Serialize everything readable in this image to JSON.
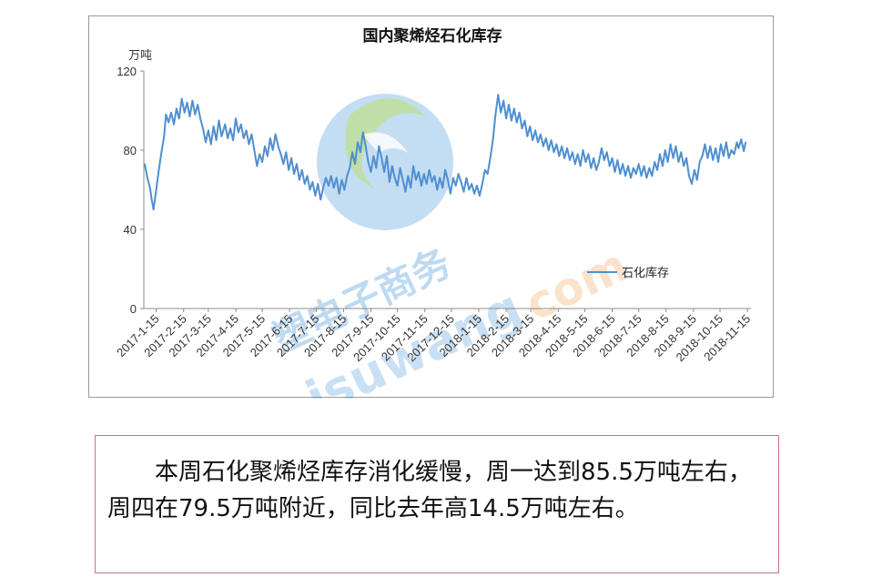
{
  "chart_data": {
    "type": "line",
    "title": "国内聚烯烃石化库存",
    "y_unit_label": "万吨",
    "ylim": [
      0,
      120
    ],
    "y_ticks": [
      "0",
      "40",
      "80",
      "120"
    ],
    "x_ticks": [
      "2017-1-15",
      "2017-2-15",
      "2017-3-15",
      "2017-4-15",
      "2017-5-15",
      "2017-6-15",
      "2017-7-15",
      "2017-8-15",
      "2017-9-15",
      "2017-10-15",
      "2017-11-15",
      "2017-12-15",
      "2018-1-15",
      "2018-2-15",
      "2018-3-15",
      "2018-4-15",
      "2018-5-15",
      "2018-6-15",
      "2018-7-15",
      "2018-8-15",
      "2018-9-15",
      "2018-10-15",
      "2018-11-15"
    ],
    "grid": false,
    "legend_position": "right",
    "series": [
      {
        "name": "石化库存",
        "color": "#4f8fd0",
        "points": [
          [
            "2017-01-02",
            73
          ],
          [
            "2017-01-05",
            66
          ],
          [
            "2017-01-08",
            61
          ],
          [
            "2017-01-10",
            55
          ],
          [
            "2017-01-12",
            50
          ],
          [
            "2017-01-15",
            60
          ],
          [
            "2017-01-18",
            70
          ],
          [
            "2017-01-21",
            79
          ],
          [
            "2017-01-24",
            87
          ],
          [
            "2017-01-26",
            98
          ],
          [
            "2017-01-29",
            94
          ],
          [
            "2017-02-01",
            99
          ],
          [
            "2017-02-04",
            93
          ],
          [
            "2017-02-07",
            101
          ],
          [
            "2017-02-10",
            96
          ],
          [
            "2017-02-13",
            106
          ],
          [
            "2017-02-16",
            99
          ],
          [
            "2017-02-19",
            104
          ],
          [
            "2017-02-22",
            97
          ],
          [
            "2017-02-25",
            105
          ],
          [
            "2017-02-28",
            98
          ],
          [
            "2017-03-03",
            103
          ],
          [
            "2017-03-06",
            96
          ],
          [
            "2017-03-09",
            91
          ],
          [
            "2017-03-12",
            84
          ],
          [
            "2017-03-15",
            90
          ],
          [
            "2017-03-18",
            83
          ],
          [
            "2017-03-21",
            92
          ],
          [
            "2017-03-24",
            85
          ],
          [
            "2017-03-27",
            95
          ],
          [
            "2017-03-30",
            87
          ],
          [
            "2017-04-03",
            93
          ],
          [
            "2017-04-06",
            86
          ],
          [
            "2017-04-09",
            91
          ],
          [
            "2017-04-12",
            85
          ],
          [
            "2017-04-15",
            96
          ],
          [
            "2017-04-18",
            89
          ],
          [
            "2017-04-21",
            93
          ],
          [
            "2017-04-24",
            86
          ],
          [
            "2017-04-27",
            90
          ],
          [
            "2017-04-30",
            83
          ],
          [
            "2017-05-03",
            88
          ],
          [
            "2017-05-06",
            80
          ],
          [
            "2017-05-09",
            72
          ],
          [
            "2017-05-12",
            78
          ],
          [
            "2017-05-15",
            74
          ],
          [
            "2017-05-18",
            82
          ],
          [
            "2017-05-21",
            77
          ],
          [
            "2017-05-24",
            86
          ],
          [
            "2017-05-27",
            80
          ],
          [
            "2017-05-30",
            88
          ],
          [
            "2017-06-02",
            82
          ],
          [
            "2017-06-05",
            78
          ],
          [
            "2017-06-08",
            73
          ],
          [
            "2017-06-11",
            79
          ],
          [
            "2017-06-14",
            70
          ],
          [
            "2017-06-17",
            76
          ],
          [
            "2017-06-20",
            68
          ],
          [
            "2017-06-23",
            73
          ],
          [
            "2017-06-26",
            65
          ],
          [
            "2017-06-29",
            70
          ],
          [
            "2017-07-02",
            63
          ],
          [
            "2017-07-05",
            67
          ],
          [
            "2017-07-08",
            60
          ],
          [
            "2017-07-11",
            64
          ],
          [
            "2017-07-14",
            57
          ],
          [
            "2017-07-17",
            63
          ],
          [
            "2017-07-20",
            55
          ],
          [
            "2017-07-23",
            61
          ],
          [
            "2017-07-26",
            66
          ],
          [
            "2017-07-29",
            62
          ],
          [
            "2017-08-01",
            67
          ],
          [
            "2017-08-04",
            61
          ],
          [
            "2017-08-07",
            66
          ],
          [
            "2017-08-10",
            58
          ],
          [
            "2017-08-13",
            65
          ],
          [
            "2017-08-16",
            60
          ],
          [
            "2017-08-19",
            67
          ],
          [
            "2017-08-22",
            71
          ],
          [
            "2017-08-25",
            79
          ],
          [
            "2017-08-28",
            73
          ],
          [
            "2017-08-31",
            84
          ],
          [
            "2017-09-03",
            79
          ],
          [
            "2017-09-06",
            89
          ],
          [
            "2017-09-09",
            82
          ],
          [
            "2017-09-12",
            74
          ],
          [
            "2017-09-15",
            69
          ],
          [
            "2017-09-18",
            77
          ],
          [
            "2017-09-21",
            71
          ],
          [
            "2017-09-24",
            82
          ],
          [
            "2017-09-27",
            76
          ],
          [
            "2017-09-30",
            69
          ],
          [
            "2017-10-03",
            77
          ],
          [
            "2017-10-06",
            64
          ],
          [
            "2017-10-09",
            72
          ],
          [
            "2017-10-12",
            66
          ],
          [
            "2017-10-15",
            62
          ],
          [
            "2017-10-18",
            71
          ],
          [
            "2017-10-21",
            65
          ],
          [
            "2017-10-24",
            59
          ],
          [
            "2017-10-27",
            67
          ],
          [
            "2017-10-30",
            61
          ],
          [
            "2017-11-02",
            72
          ],
          [
            "2017-11-05",
            65
          ],
          [
            "2017-11-08",
            69
          ],
          [
            "2017-11-11",
            62
          ],
          [
            "2017-11-14",
            68
          ],
          [
            "2017-11-17",
            63
          ],
          [
            "2017-11-20",
            70
          ],
          [
            "2017-11-23",
            64
          ],
          [
            "2017-11-26",
            67
          ],
          [
            "2017-11-29",
            60
          ],
          [
            "2017-12-02",
            66
          ],
          [
            "2017-12-05",
            61
          ],
          [
            "2017-12-08",
            70
          ],
          [
            "2017-12-11",
            65
          ],
          [
            "2017-12-14",
            58
          ],
          [
            "2017-12-17",
            66
          ],
          [
            "2017-12-20",
            62
          ],
          [
            "2017-12-23",
            68
          ],
          [
            "2017-12-26",
            64
          ],
          [
            "2017-12-29",
            59
          ],
          [
            "2018-01-01",
            66
          ],
          [
            "2018-01-04",
            60
          ],
          [
            "2018-01-07",
            63
          ],
          [
            "2018-01-10",
            58
          ],
          [
            "2018-01-13",
            62
          ],
          [
            "2018-01-16",
            57
          ],
          [
            "2018-01-19",
            63
          ],
          [
            "2018-01-22",
            70
          ],
          [
            "2018-01-25",
            68
          ],
          [
            "2018-01-28",
            76
          ],
          [
            "2018-01-31",
            85
          ],
          [
            "2018-02-03",
            98
          ],
          [
            "2018-02-06",
            108
          ],
          [
            "2018-02-09",
            99
          ],
          [
            "2018-02-12",
            105
          ],
          [
            "2018-02-15",
            96
          ],
          [
            "2018-02-18",
            103
          ],
          [
            "2018-02-21",
            95
          ],
          [
            "2018-02-24",
            101
          ],
          [
            "2018-02-27",
            94
          ],
          [
            "2018-03-02",
            99
          ],
          [
            "2018-03-05",
            91
          ],
          [
            "2018-03-08",
            95
          ],
          [
            "2018-03-11",
            87
          ],
          [
            "2018-03-14",
            92
          ],
          [
            "2018-03-17",
            85
          ],
          [
            "2018-03-20",
            90
          ],
          [
            "2018-03-23",
            84
          ],
          [
            "2018-03-26",
            88
          ],
          [
            "2018-03-29",
            82
          ],
          [
            "2018-04-01",
            86
          ],
          [
            "2018-04-04",
            80
          ],
          [
            "2018-04-07",
            85
          ],
          [
            "2018-04-10",
            79
          ],
          [
            "2018-04-13",
            83
          ],
          [
            "2018-04-16",
            77
          ],
          [
            "2018-04-19",
            82
          ],
          [
            "2018-04-22",
            76
          ],
          [
            "2018-04-25",
            81
          ],
          [
            "2018-04-28",
            75
          ],
          [
            "2018-05-01",
            79
          ],
          [
            "2018-05-04",
            73
          ],
          [
            "2018-05-07",
            78
          ],
          [
            "2018-05-10",
            72
          ],
          [
            "2018-05-13",
            80
          ],
          [
            "2018-05-16",
            74
          ],
          [
            "2018-05-19",
            78
          ],
          [
            "2018-05-22",
            71
          ],
          [
            "2018-05-25",
            76
          ],
          [
            "2018-05-28",
            70
          ],
          [
            "2018-05-31",
            74
          ],
          [
            "2018-06-03",
            81
          ],
          [
            "2018-06-06",
            75
          ],
          [
            "2018-06-09",
            79
          ],
          [
            "2018-06-12",
            72
          ],
          [
            "2018-06-15",
            76
          ],
          [
            "2018-06-18",
            69
          ],
          [
            "2018-06-21",
            75
          ],
          [
            "2018-06-24",
            68
          ],
          [
            "2018-06-27",
            73
          ],
          [
            "2018-06-30",
            67
          ],
          [
            "2018-07-03",
            72
          ],
          [
            "2018-07-06",
            66
          ],
          [
            "2018-07-09",
            71
          ],
          [
            "2018-07-12",
            68
          ],
          [
            "2018-07-15",
            73
          ],
          [
            "2018-07-18",
            67
          ],
          [
            "2018-07-21",
            72
          ],
          [
            "2018-07-24",
            66
          ],
          [
            "2018-07-27",
            71
          ],
          [
            "2018-07-30",
            67
          ],
          [
            "2018-08-02",
            74
          ],
          [
            "2018-08-05",
            70
          ],
          [
            "2018-08-08",
            78
          ],
          [
            "2018-08-11",
            72
          ],
          [
            "2018-08-14",
            80
          ],
          [
            "2018-08-17",
            74
          ],
          [
            "2018-08-20",
            83
          ],
          [
            "2018-08-23",
            76
          ],
          [
            "2018-08-26",
            82
          ],
          [
            "2018-08-29",
            74
          ],
          [
            "2018-09-01",
            79
          ],
          [
            "2018-09-04",
            72
          ],
          [
            "2018-09-07",
            76
          ],
          [
            "2018-09-10",
            67
          ],
          [
            "2018-09-13",
            63
          ],
          [
            "2018-09-16",
            70
          ],
          [
            "2018-09-19",
            65
          ],
          [
            "2018-09-22",
            74
          ],
          [
            "2018-09-25",
            77
          ],
          [
            "2018-09-28",
            83
          ],
          [
            "2018-10-01",
            76
          ],
          [
            "2018-10-04",
            82
          ],
          [
            "2018-10-07",
            75
          ],
          [
            "2018-10-10",
            81
          ],
          [
            "2018-10-13",
            74
          ],
          [
            "2018-10-16",
            83
          ],
          [
            "2018-10-19",
            77
          ],
          [
            "2018-10-22",
            84
          ],
          [
            "2018-10-25",
            76
          ],
          [
            "2018-10-28",
            80
          ],
          [
            "2018-10-31",
            78
          ],
          [
            "2018-11-03",
            84
          ],
          [
            "2018-11-05",
            81
          ],
          [
            "2018-11-08",
            85.5
          ],
          [
            "2018-11-11",
            79.5
          ],
          [
            "2018-11-13",
            84
          ]
        ]
      }
    ]
  },
  "watermark": {
    "chinese": "塑电子商务",
    "latin": "isuwang",
    "dotcom": "com",
    "colors": {
      "blue": "#3b8ed8",
      "orange": "#f0a050",
      "green": "#8cc63f"
    }
  },
  "summary": {
    "text": "本周石化聚烯烃库存消化缓慢，周一达到85.5万吨左右，周四在79.5万吨附近，同比去年高14.5万吨左右。",
    "border_color": "#c5747f"
  }
}
